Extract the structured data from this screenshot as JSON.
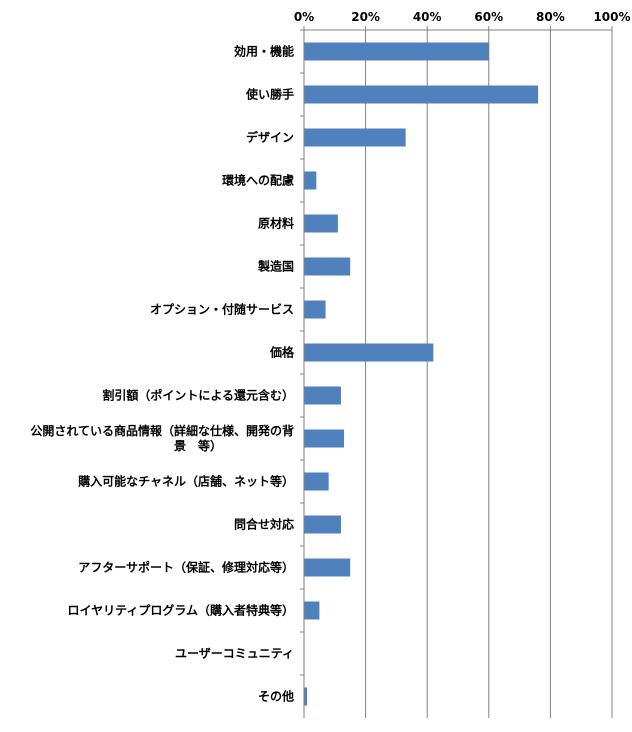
{
  "chart_data": {
    "type": "bar",
    "orientation": "horizontal",
    "categories": [
      [
        "効用・機能"
      ],
      [
        "使い勝手"
      ],
      [
        "デザイン"
      ],
      [
        "環境への配慮"
      ],
      [
        "原材料"
      ],
      [
        "製造国"
      ],
      [
        "オプション・付随サービス"
      ],
      [
        "価格"
      ],
      [
        "割引額（ポイントによる還元含む）"
      ],
      [
        "公開されている商品情報（詳細な仕様、開発の背",
        "景　等）"
      ],
      [
        "購入可能なチャネル（店舗、ネット等）"
      ],
      [
        "問合せ対応"
      ],
      [
        "アフターサポート（保証、修理対応等）"
      ],
      [
        "ロイヤリティプログラム（購入者特典等）"
      ],
      [
        "ユーザーコミュニティ"
      ],
      [
        "その他"
      ]
    ],
    "values": [
      60,
      76,
      33,
      4,
      11,
      15,
      7,
      42,
      12,
      13,
      8,
      12,
      15,
      5,
      0,
      1
    ],
    "x_ticks": [
      "0%",
      "20%",
      "40%",
      "60%",
      "80%",
      "100%"
    ],
    "xlim": [
      0,
      100
    ],
    "axis_position": "top",
    "grid": true,
    "bar_color": "#4F81BD",
    "grid_color": "#808080",
    "axis_color": "#808080"
  }
}
